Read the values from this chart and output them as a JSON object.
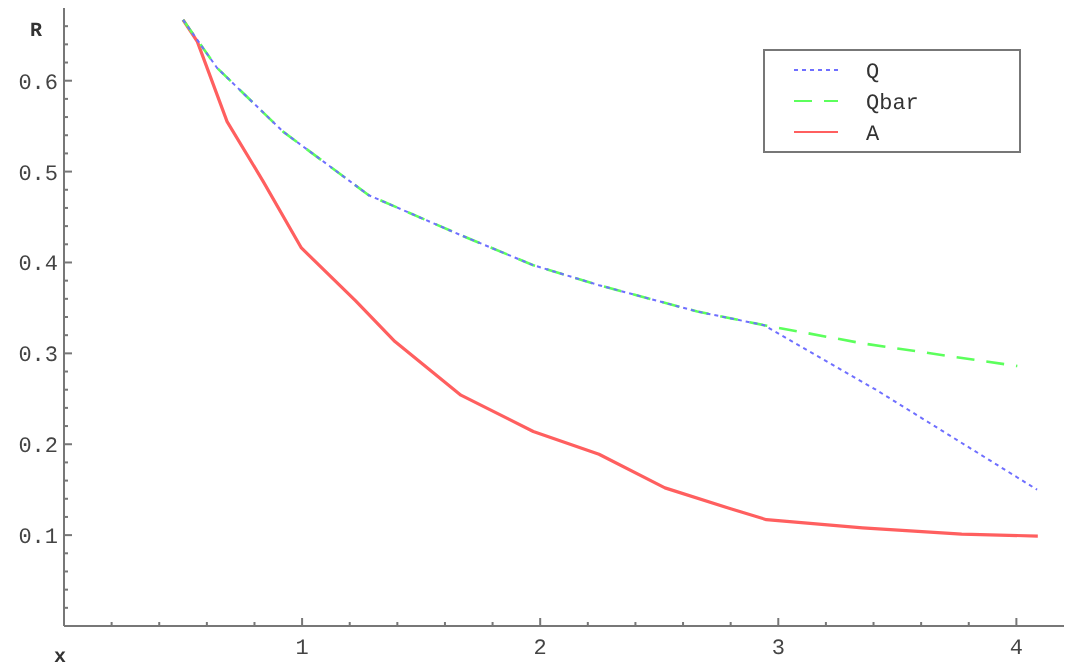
{
  "chart_data": {
    "type": "line",
    "xlabel": "x",
    "ylabel": "R",
    "xlim": [
      0,
      4.2
    ],
    "ylim": [
      0,
      0.68
    ],
    "xticks": [
      {
        "value": 0.2,
        "label": null
      },
      {
        "value": 0.4,
        "label": null
      },
      {
        "value": 0.6,
        "label": null
      },
      {
        "value": 0.8,
        "label": null
      },
      1,
      {
        "value": 1.2,
        "label": null
      },
      {
        "value": 1.4,
        "label": null
      },
      {
        "value": 1.6,
        "label": null
      },
      {
        "value": 1.8,
        "label": null
      },
      2,
      {
        "value": 2.2,
        "label": null
      },
      {
        "value": 2.4,
        "label": null
      },
      {
        "value": 2.6,
        "label": null
      },
      {
        "value": 2.8,
        "label": null
      },
      3,
      {
        "value": 3.2,
        "label": null
      },
      {
        "value": 3.4,
        "label": null
      },
      {
        "value": 3.6,
        "label": null
      },
      {
        "value": 3.8,
        "label": null
      },
      4
    ],
    "yticks": [
      {
        "value": 0.02,
        "label": null
      },
      {
        "value": 0.04,
        "label": null
      },
      {
        "value": 0.06,
        "label": null
      },
      {
        "value": 0.08,
        "label": null
      },
      0.1,
      {
        "value": 0.12,
        "label": null
      },
      {
        "value": 0.14,
        "label": null
      },
      {
        "value": 0.16,
        "label": null
      },
      {
        "value": 0.18,
        "label": null
      },
      0.2,
      {
        "value": 0.22,
        "label": null
      },
      {
        "value": 0.24,
        "label": null
      },
      {
        "value": 0.26,
        "label": null
      },
      {
        "value": 0.28,
        "label": null
      },
      0.3,
      {
        "value": 0.32,
        "label": null
      },
      {
        "value": 0.34,
        "label": null
      },
      {
        "value": 0.36,
        "label": null
      },
      {
        "value": 0.38,
        "label": null
      },
      0.4,
      {
        "value": 0.42,
        "label": null
      },
      {
        "value": 0.44,
        "label": null
      },
      {
        "value": 0.46,
        "label": null
      },
      {
        "value": 0.48,
        "label": null
      },
      0.5,
      {
        "value": 0.52,
        "label": null
      },
      {
        "value": 0.54,
        "label": null
      },
      {
        "value": 0.56,
        "label": null
      },
      {
        "value": 0.58,
        "label": null
      },
      0.6,
      {
        "value": 0.62,
        "label": null
      },
      {
        "value": 0.64,
        "label": null
      },
      {
        "value": 0.66,
        "label": null
      }
    ],
    "grid": false,
    "legend": "top right",
    "marker": "none",
    "series": [
      {
        "name": "Q",
        "color": "#6f6fff",
        "line_style": "dotted",
        "x": [
          0.5,
          0.643,
          0.92,
          1.28,
          1.667,
          1.971,
          2.247,
          2.66,
          2.94,
          3.41,
          4.087
        ],
        "values": [
          0.667,
          0.614,
          0.544,
          0.474,
          0.43,
          0.397,
          0.375,
          0.346,
          0.331,
          0.26,
          0.15
        ]
      },
      {
        "name": "Qbar",
        "color": "#5cff5c",
        "line_style": "dashed",
        "x": [
          0.5,
          0.643,
          0.92,
          1.28,
          1.667,
          1.971,
          2.247,
          2.66,
          2.94,
          3.354,
          4.004
        ],
        "values": [
          0.667,
          0.614,
          0.544,
          0.474,
          0.43,
          0.397,
          0.375,
          0.346,
          0.331,
          0.311,
          0.286
        ]
      },
      {
        "name": "A",
        "color": "#ff5f5f",
        "line_style": "solid",
        "x": [
          0.5,
          0.56,
          0.685,
          0.837,
          0.997,
          1.224,
          1.39,
          1.667,
          1.971,
          2.247,
          2.524,
          2.8,
          2.95,
          3.354,
          3.77,
          4.09
        ],
        "values": [
          0.667,
          0.643,
          0.555,
          0.489,
          0.416,
          0.358,
          0.313,
          0.254,
          0.214,
          0.189,
          0.152,
          0.129,
          0.117,
          0.108,
          0.101,
          0.099
        ]
      }
    ]
  }
}
